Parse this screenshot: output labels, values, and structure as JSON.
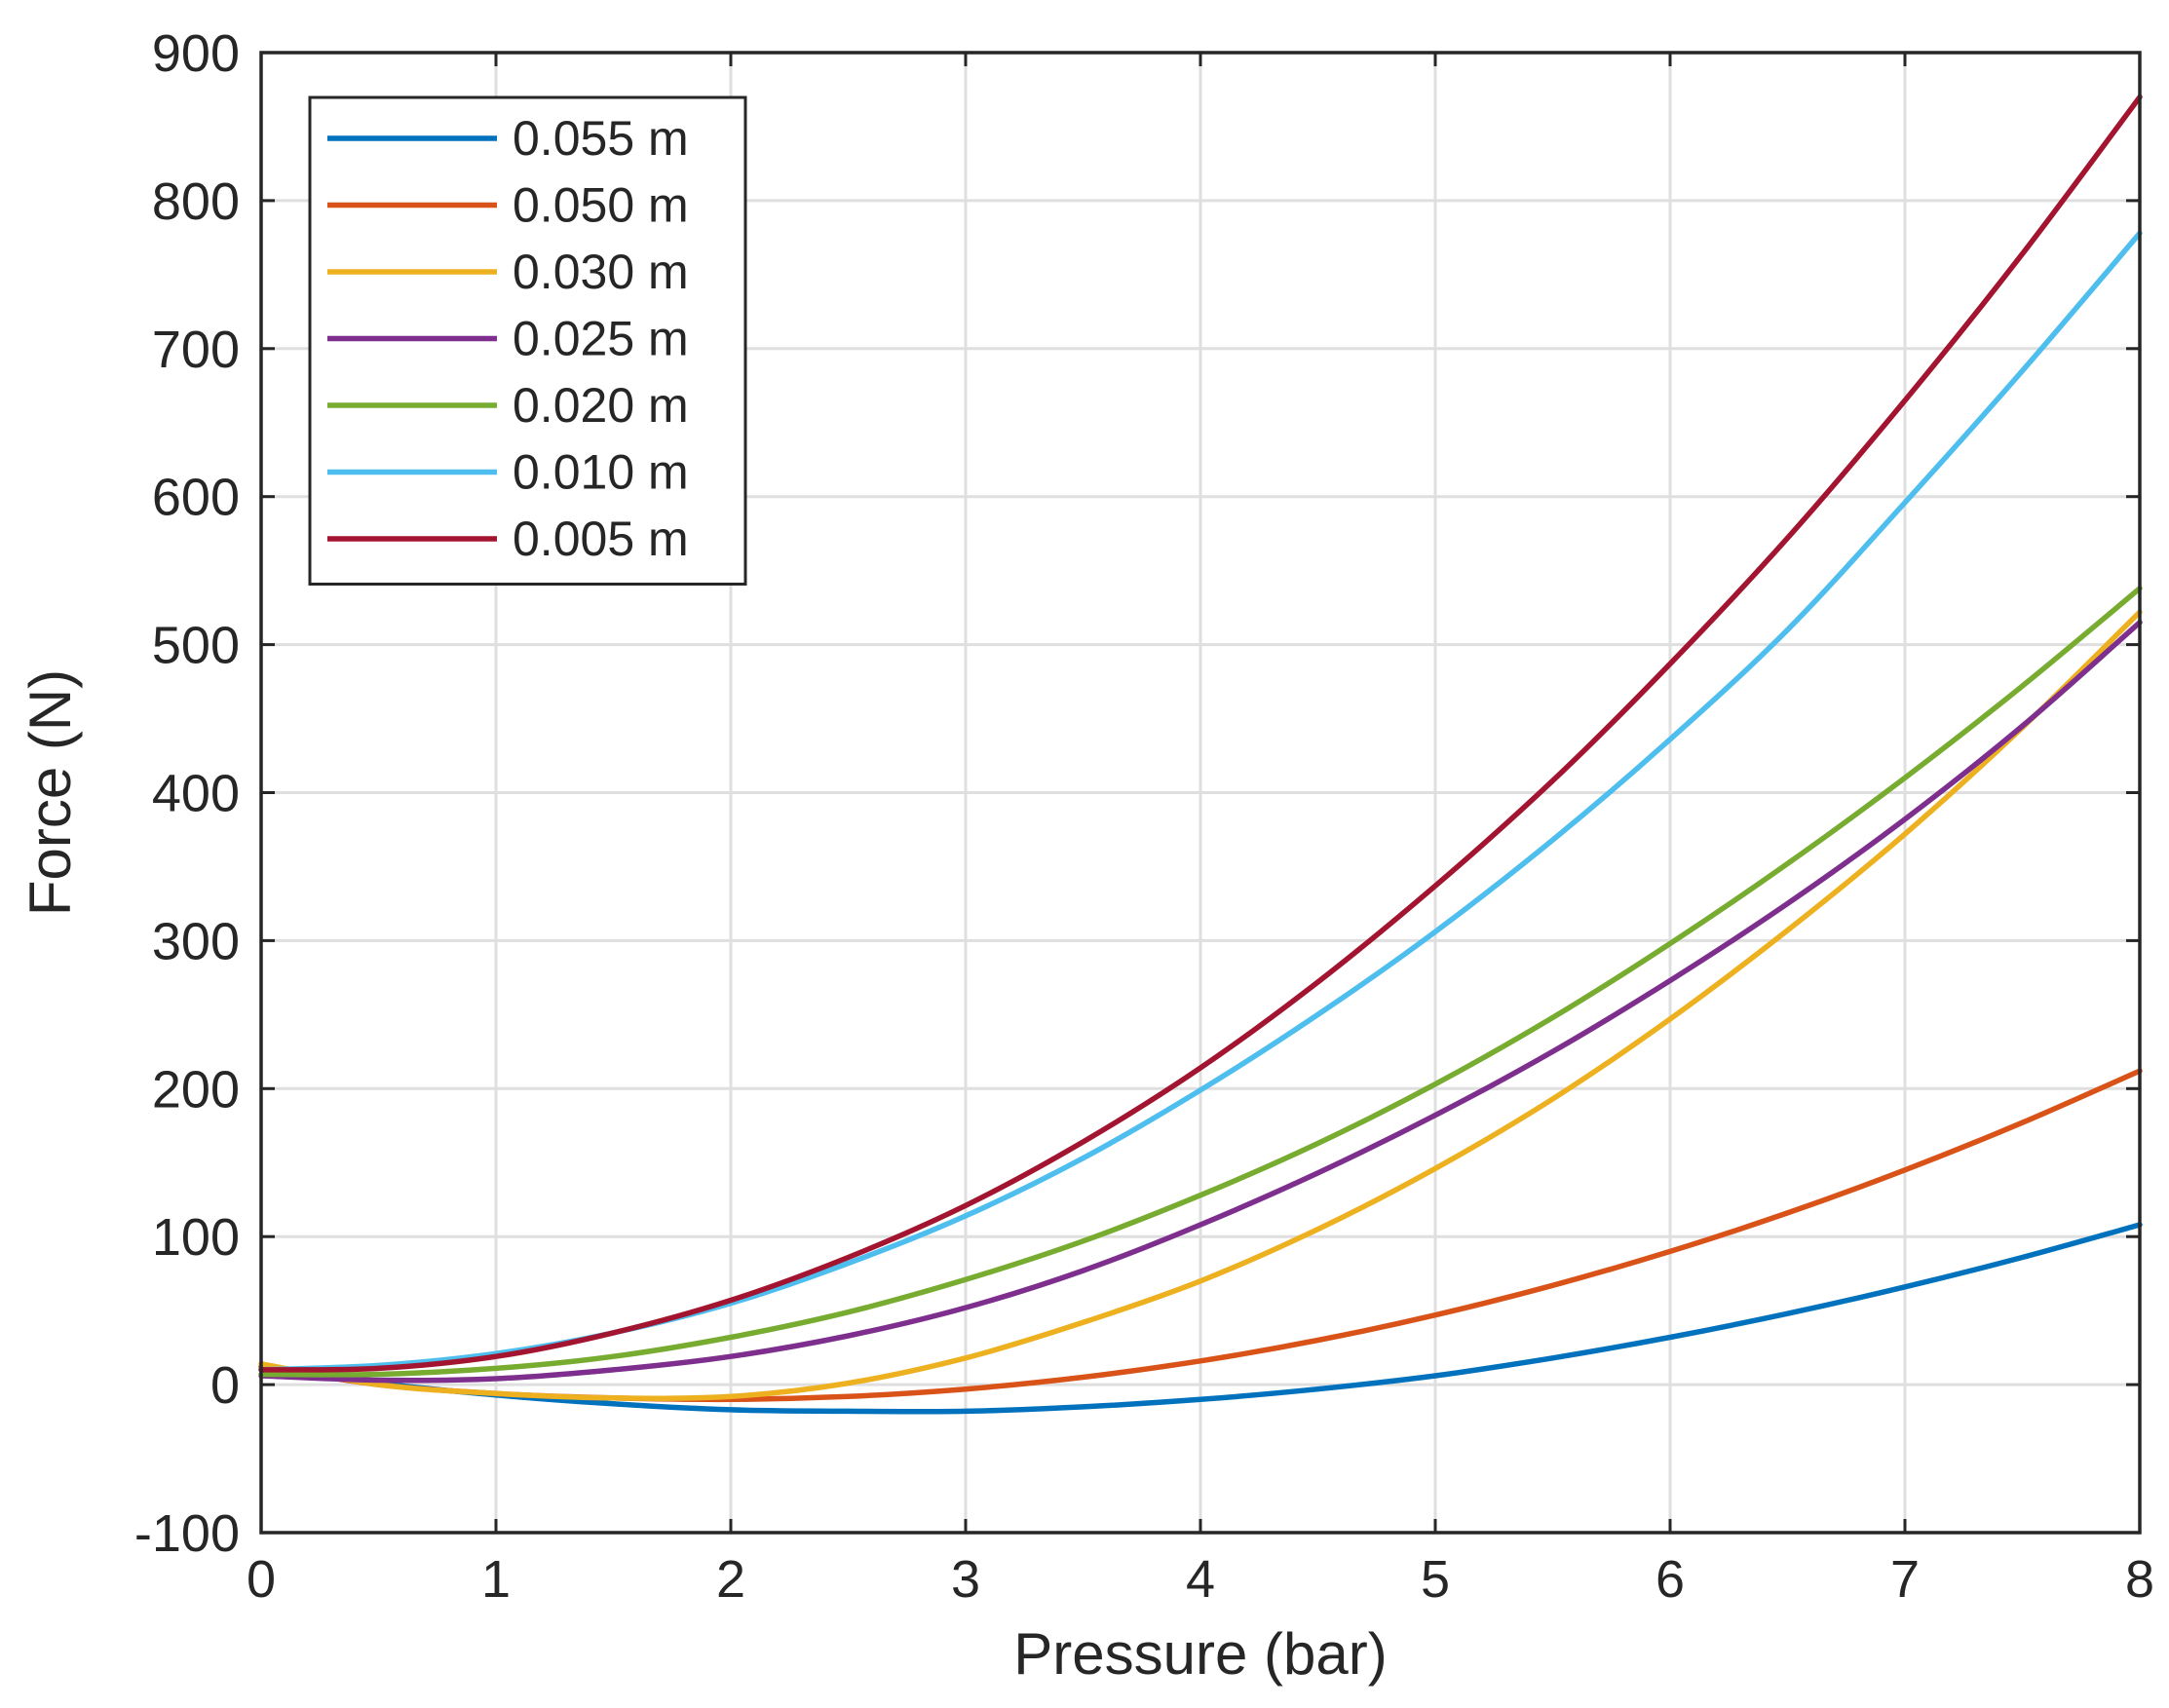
{
  "chart_data": {
    "type": "line",
    "title": "",
    "xlabel": "Pressure (bar)",
    "ylabel": "Force (N)",
    "xlim": [
      0,
      8
    ],
    "ylim": [
      -100,
      900
    ],
    "xticks": [
      0,
      1,
      2,
      3,
      4,
      5,
      6,
      7,
      8
    ],
    "yticks": [
      -100,
      0,
      100,
      200,
      300,
      400,
      500,
      600,
      700,
      800,
      900
    ],
    "grid": true,
    "legend_position": "top-left",
    "x": [
      0,
      0.5,
      1,
      1.5,
      2,
      2.5,
      3,
      3.5,
      4,
      4.5,
      5,
      5.5,
      6,
      6.5,
      7,
      7.5,
      8
    ],
    "series": [
      {
        "name": "0.055 m",
        "color": "#0072BD",
        "values": [
          12,
          1,
          -7,
          -13,
          -17,
          -18,
          -18,
          -15,
          -10,
          -3,
          6,
          18,
          32,
          48,
          66,
          86,
          108
        ]
      },
      {
        "name": "0.050 m",
        "color": "#D95319",
        "values": [
          12,
          0,
          -6,
          -9,
          -10,
          -8,
          -3,
          5,
          16,
          30,
          47,
          67,
          90,
          116,
          145,
          177,
          212
        ]
      },
      {
        "name": "0.030 m",
        "color": "#EDB120",
        "values": [
          14,
          0,
          -6,
          -9,
          -8,
          1,
          18,
          42,
          70,
          105,
          146,
          193,
          247,
          307,
          372,
          444,
          522
        ]
      },
      {
        "name": "0.025 m",
        "color": "#7E2F8E",
        "values": [
          6,
          3,
          4,
          10,
          19,
          33,
          52,
          77,
          108,
          143,
          182,
          225,
          273,
          325,
          382,
          445,
          515
        ]
      },
      {
        "name": "0.020 m",
        "color": "#77AC30",
        "values": [
          7,
          7,
          11,
          19,
          32,
          49,
          71,
          97,
          128,
          163,
          203,
          248,
          298,
          352,
          410,
          472,
          538
        ]
      },
      {
        "name": "0.010 m",
        "color": "#4DBEEE",
        "values": [
          10,
          13,
          21,
          35,
          55,
          82,
          114,
          153,
          199,
          250,
          306,
          368,
          436,
          510,
          596,
          685,
          778
        ]
      },
      {
        "name": "0.005 m",
        "color": "#A2142F",
        "values": [
          10,
          11,
          19,
          35,
          57,
          86,
          121,
          164,
          214,
          272,
          337,
          408,
          487,
          572,
          665,
          764,
          870
        ]
      }
    ]
  }
}
